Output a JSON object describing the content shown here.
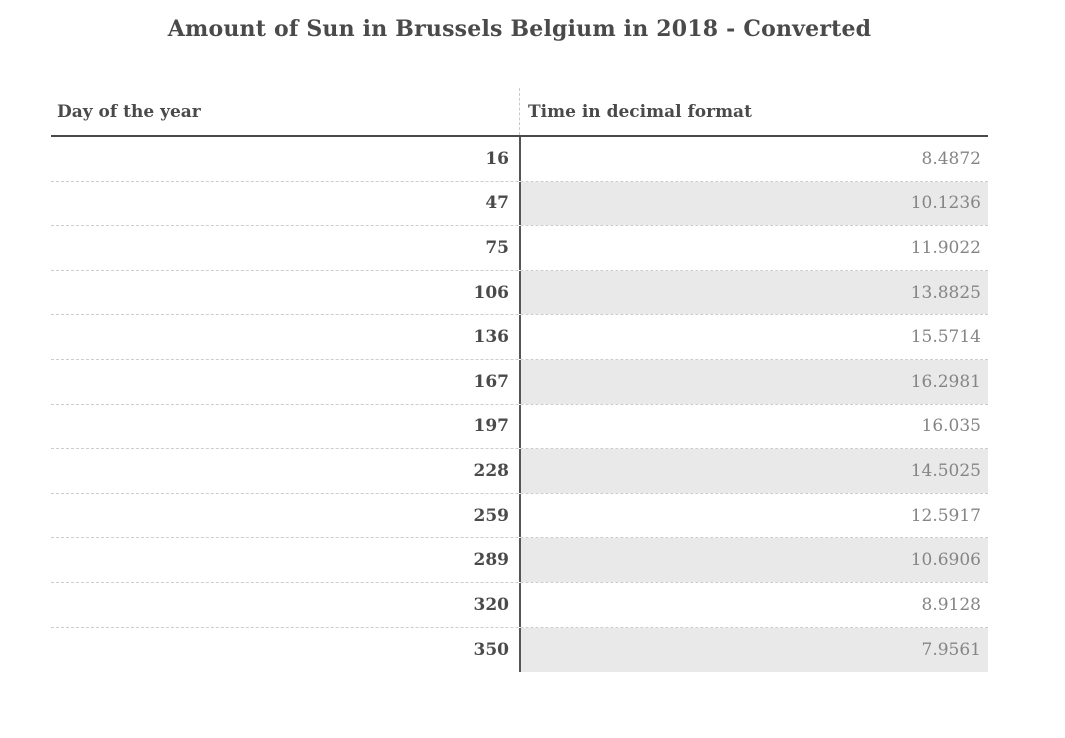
{
  "title": "Amount of Sun in Brussels Belgium in 2018 - Converted",
  "table": {
    "columns": {
      "day": "Day of the year",
      "value": "Time in decimal format"
    },
    "rows": [
      {
        "day": "16",
        "value": "8.4872"
      },
      {
        "day": "47",
        "value": "10.1236"
      },
      {
        "day": "75",
        "value": "11.9022"
      },
      {
        "day": "106",
        "value": "13.8825"
      },
      {
        "day": "136",
        "value": "15.5714"
      },
      {
        "day": "167",
        "value": "16.2981"
      },
      {
        "day": "197",
        "value": "16.035"
      },
      {
        "day": "228",
        "value": "14.5025"
      },
      {
        "day": "259",
        "value": "12.5917"
      },
      {
        "day": "289",
        "value": "10.6906"
      },
      {
        "day": "320",
        "value": "8.9128"
      },
      {
        "day": "350",
        "value": "7.9561"
      }
    ]
  },
  "colors": {
    "title_text": "#4a4a4a",
    "header_text": "#4a4a4a",
    "day_text": "#4a4a4a",
    "value_text": "#858585",
    "stripe_background": "#e9e9e9",
    "header_underline": "#4a4a4a",
    "column_divider": "#555555",
    "row_separator_dashed": "#cdcdcd",
    "background": "#ffffff"
  },
  "chart_data": {
    "type": "table",
    "title": "Amount of Sun in Brussels Belgium in 2018 - Converted",
    "columns": [
      "Day of the year",
      "Time in decimal format"
    ],
    "x_label": "Day of the year",
    "y_label": "Time in decimal format",
    "x": [
      16,
      47,
      75,
      106,
      136,
      167,
      197,
      228,
      259,
      289,
      320,
      350
    ],
    "values": [
      8.4872,
      10.1236,
      11.9022,
      13.8825,
      15.5714,
      16.2981,
      16.035,
      14.5025,
      12.5917,
      10.6906,
      8.9128,
      7.9561
    ],
    "layout_hints": {
      "striped_rows": "even rows shaded in value column only",
      "row_separators": "dashed",
      "grid": false,
      "legend": false
    }
  }
}
